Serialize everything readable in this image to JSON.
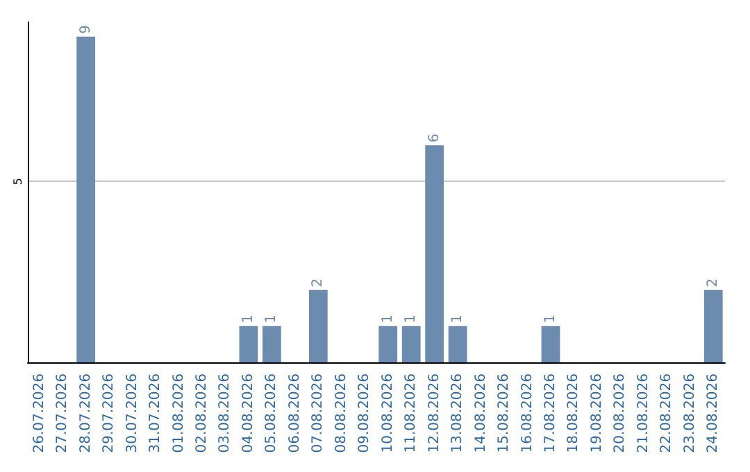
{
  "chart_data": {
    "type": "bar",
    "categories": [
      "26.07.2026",
      "27.07.2026",
      "28.07.2026",
      "29.07.2026",
      "30.07.2026",
      "31.07.2026",
      "01.08.2026",
      "02.08.2026",
      "03.08.2026",
      "04.08.2026",
      "05.08.2026",
      "06.08.2026",
      "07.08.2026",
      "08.08.2026",
      "09.08.2026",
      "10.08.2026",
      "11.08.2026",
      "12.08.2026",
      "13.08.2026",
      "14.08.2026",
      "15.08.2026",
      "16.08.2026",
      "17.08.2026",
      "18.08.2026",
      "19.08.2026",
      "20.08.2026",
      "21.08.2026",
      "22.08.2026",
      "23.08.2026",
      "24.08.2026"
    ],
    "values": [
      null,
      null,
      9,
      null,
      null,
      null,
      null,
      null,
      null,
      1,
      1,
      null,
      2,
      null,
      null,
      1,
      1,
      6,
      1,
      null,
      null,
      null,
      1,
      null,
      null,
      null,
      null,
      null,
      null,
      2
    ],
    "color": "#6b8cae",
    "ylim": [
      0,
      9.4
    ],
    "yticks": [
      5
    ],
    "grid": "y",
    "data_labels": true
  }
}
